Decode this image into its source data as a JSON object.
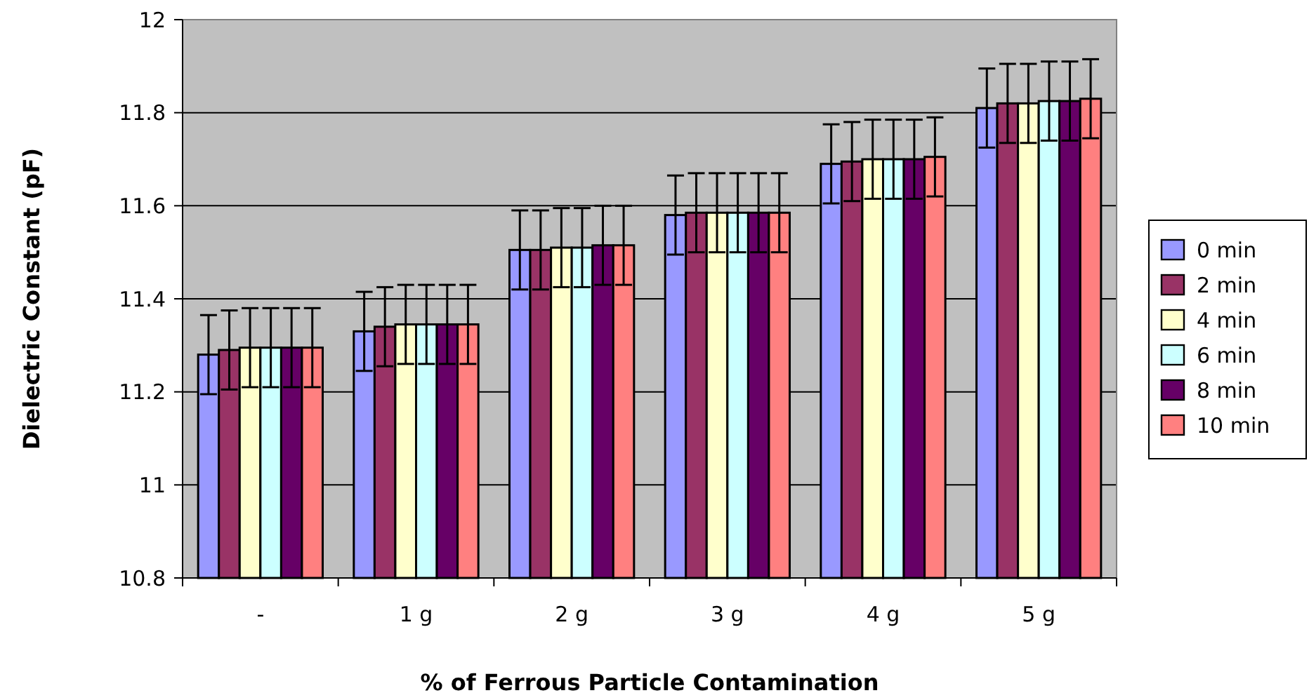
{
  "chart_data": {
    "type": "bar",
    "xlabel": "% of Ferrous Particle Contamination",
    "ylabel": "Dielectric Constant (pF)",
    "categories": [
      "-",
      "1 g",
      "2 g",
      "3 g",
      "4 g",
      "5 g"
    ],
    "series": [
      {
        "name": "0 min",
        "color": "#9999ff",
        "values": [
          11.28,
          11.33,
          11.505,
          11.58,
          11.69,
          11.81
        ],
        "errors": [
          0.085,
          0.085,
          0.085,
          0.085,
          0.085,
          0.085
        ]
      },
      {
        "name": "2 min",
        "color": "#993366",
        "values": [
          11.29,
          11.34,
          11.505,
          11.585,
          11.695,
          11.82
        ],
        "errors": [
          0.085,
          0.085,
          0.085,
          0.085,
          0.085,
          0.085
        ]
      },
      {
        "name": "4 min",
        "color": "#ffffcc",
        "values": [
          11.295,
          11.345,
          11.51,
          11.585,
          11.7,
          11.82
        ],
        "errors": [
          0.085,
          0.085,
          0.085,
          0.085,
          0.085,
          0.085
        ]
      },
      {
        "name": "6 min",
        "color": "#ccffff",
        "values": [
          11.295,
          11.345,
          11.51,
          11.585,
          11.7,
          11.825
        ],
        "errors": [
          0.085,
          0.085,
          0.085,
          0.085,
          0.085,
          0.085
        ]
      },
      {
        "name": "8 min",
        "color": "#660066",
        "values": [
          11.295,
          11.345,
          11.515,
          11.585,
          11.7,
          11.825
        ],
        "errors": [
          0.085,
          0.085,
          0.085,
          0.085,
          0.085,
          0.085
        ]
      },
      {
        "name": "10 min",
        "color": "#ff8080",
        "values": [
          11.295,
          11.345,
          11.515,
          11.585,
          11.705,
          11.83
        ],
        "errors": [
          0.085,
          0.085,
          0.085,
          0.085,
          0.085,
          0.085
        ]
      }
    ],
    "ylim": [
      10.8,
      12
    ],
    "yticks": [
      10.8,
      11,
      11.2,
      11.4,
      11.6,
      11.8,
      12
    ],
    "grid": "y",
    "legend": "right"
  }
}
